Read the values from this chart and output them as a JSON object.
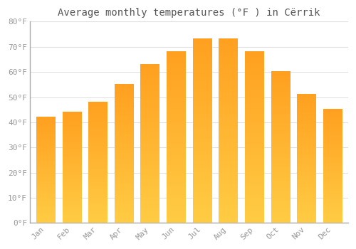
{
  "title": "Average monthly temperatures (°F ) in Cërrik",
  "months": [
    "Jan",
    "Feb",
    "Mar",
    "Apr",
    "May",
    "Jun",
    "Jul",
    "Aug",
    "Sep",
    "Oct",
    "Nov",
    "Dec"
  ],
  "values": [
    42,
    44,
    48,
    55,
    63,
    68,
    73,
    73,
    68,
    60,
    51,
    45
  ],
  "bar_color_bottom": "#FFCC44",
  "bar_color_top": "#FFA020",
  "background_color": "#FFFFFF",
  "plot_bg_color": "#FFFFFF",
  "grid_color": "#E0E0E0",
  "ylim": [
    0,
    80
  ],
  "yticks": [
    0,
    10,
    20,
    30,
    40,
    50,
    60,
    70,
    80
  ],
  "ytick_labels": [
    "0°F",
    "10°F",
    "20°F",
    "30°F",
    "40°F",
    "50°F",
    "60°F",
    "70°F",
    "80°F"
  ],
  "tick_color": "#999999",
  "spine_color": "#AAAAAA",
  "title_color": "#555555",
  "title_fontsize": 10,
  "tick_fontsize": 8,
  "bar_width": 0.72
}
